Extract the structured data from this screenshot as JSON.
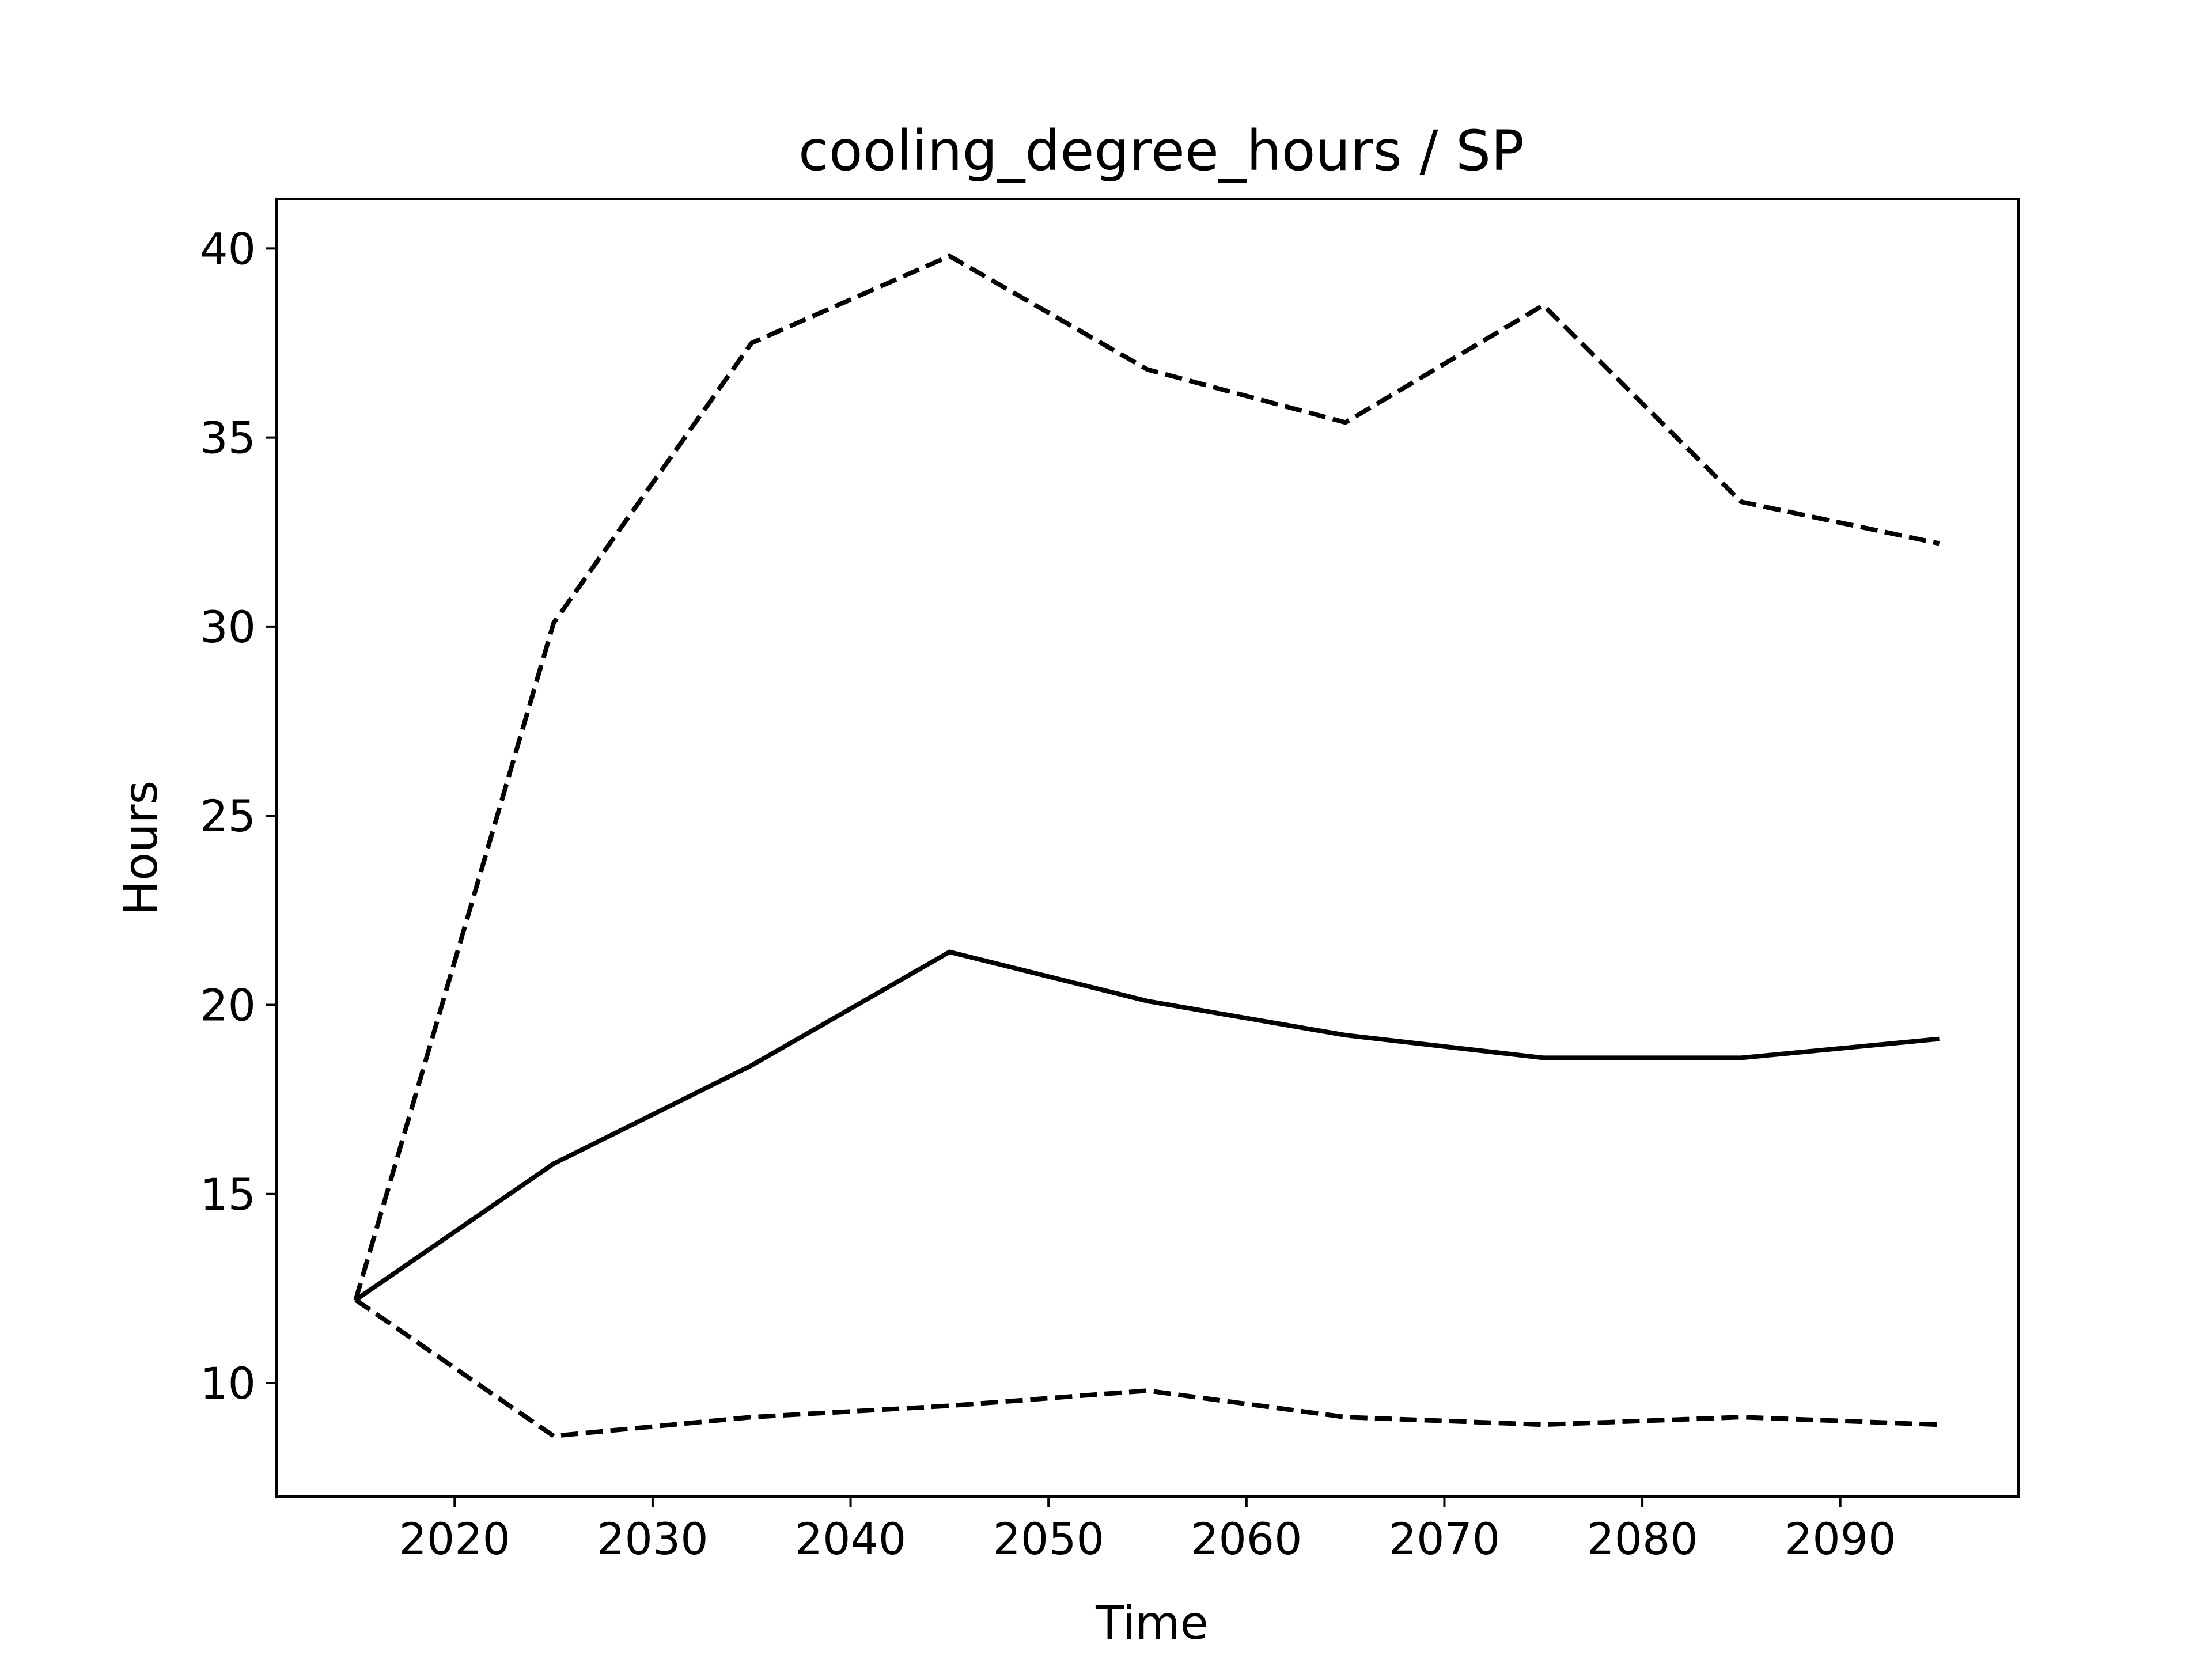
{
  "chart_data": {
    "type": "line",
    "title": "cooling_degree_hours / SP",
    "xlabel": "Time",
    "ylabel": "Hours",
    "xlim": [
      2011,
      2099
    ],
    "ylim": [
      7.0,
      41.3
    ],
    "x_ticks": [
      2020,
      2030,
      2040,
      2050,
      2060,
      2070,
      2080,
      2090
    ],
    "y_ticks": [
      10,
      15,
      20,
      25,
      30,
      35,
      40
    ],
    "grid": false,
    "legend": "none",
    "x": [
      2015,
      2025,
      2035,
      2045,
      2055,
      2065,
      2075,
      2085,
      2095
    ],
    "series": [
      {
        "style": "dashed",
        "color": "#000000",
        "values": [
          12.2,
          30.1,
          37.5,
          39.8,
          36.8,
          35.4,
          38.5,
          33.3,
          32.2
        ]
      },
      {
        "style": "solid",
        "color": "#000000",
        "values": [
          12.2,
          15.8,
          18.4,
          21.4,
          20.1,
          19.2,
          18.6,
          18.6,
          19.1
        ]
      },
      {
        "style": "dashed",
        "color": "#000000",
        "values": [
          12.2,
          8.6,
          9.1,
          9.4,
          9.8,
          9.1,
          8.9,
          9.1,
          8.9
        ]
      }
    ]
  }
}
